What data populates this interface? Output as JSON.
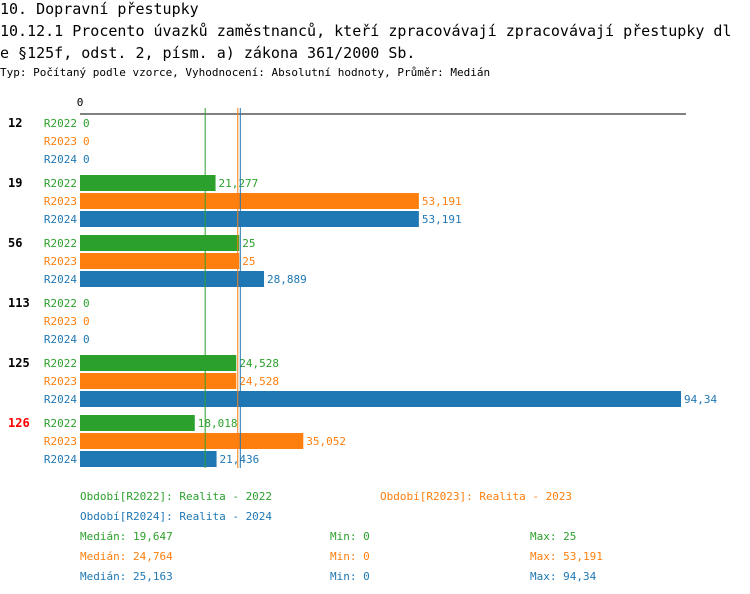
{
  "header": {
    "line1": "10. Dopravní přestupky",
    "line2": "10.12.1 Procento úvazků zaměstnanců, kteří zpracovávají zpracovávají přestupky dl",
    "line3": "e §125f, odst. 2, písm. a) zákona 361/2000 Sb.",
    "subtitle": "Typ: Počítaný podle vzorce, Vyhodnocení: Absolutní hodnoty, Průměr: Medián"
  },
  "colors": {
    "R2022": "#2ca02c",
    "R2023": "#ff7f0e",
    "R2024": "#1f77b4",
    "highlight": "#ff0000"
  },
  "chart_data": {
    "type": "bar",
    "orientation": "horizontal",
    "xlim": [
      0,
      94.34
    ],
    "axis_zero_label": "0",
    "categories": [
      "12",
      "19",
      "56",
      "113",
      "125",
      "126"
    ],
    "highlighted_category": "126",
    "series": [
      {
        "name": "R2022",
        "values": [
          0,
          21.277,
          25,
          0,
          24.528,
          18.018
        ],
        "labels": [
          "0",
          "21,277",
          "25",
          "0",
          "24,528",
          "18,018"
        ],
        "median": 19.647
      },
      {
        "name": "R2023",
        "values": [
          0,
          53.191,
          25,
          0,
          24.528,
          35.052
        ],
        "labels": [
          "0",
          "53,191",
          "25",
          "0",
          "24,528",
          "35,052"
        ],
        "median": 24.764
      },
      {
        "name": "R2024",
        "values": [
          0,
          53.191,
          28.889,
          0,
          94.34,
          21.436
        ],
        "labels": [
          "0",
          "53,191",
          "28,889",
          "0",
          "94,34",
          "21,436"
        ],
        "median": 25.163
      }
    ]
  },
  "legend": {
    "r2022": "Období[R2022]: Realita - 2022",
    "r2023": "Období[R2023]: Realita - 2023",
    "r2024": "Období[R2024]: Realita - 2024"
  },
  "stats": {
    "r2022": {
      "median": "Medián: 19,647",
      "min": "Min: 0",
      "max": "Max: 25"
    },
    "r2023": {
      "median": "Medián: 24,764",
      "min": "Min: 0",
      "max": "Max: 53,191"
    },
    "r2024": {
      "median": "Medián: 25,163",
      "min": "Min: 0",
      "max": "Max: 94,34"
    }
  }
}
